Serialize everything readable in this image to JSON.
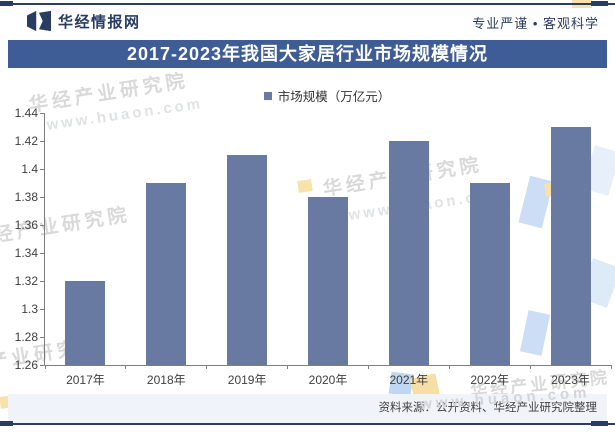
{
  "header": {
    "brand": "华经情报网",
    "slogan": "专业严谨 • 客观科学",
    "logo_icon": "huajing-butterfly-logo"
  },
  "chart_data": {
    "type": "bar",
    "title": "2017-2023年我国大家居行业市场规模情况",
    "series_name": "市场规模（万亿元）",
    "categories": [
      "2017年",
      "2018年",
      "2019年",
      "2020年",
      "2021年",
      "2022年",
      "2023年"
    ],
    "values": [
      1.32,
      1.39,
      1.41,
      1.38,
      1.42,
      1.39,
      1.43
    ],
    "xlabel": "",
    "ylabel": "",
    "ylim": [
      1.26,
      1.44
    ],
    "y_tick_labels": [
      "1.26",
      "1.28",
      "1.3",
      "1.32",
      "1.34",
      "1.36",
      "1.38",
      "1.4",
      "1.42",
      "1.44"
    ],
    "grid": false,
    "legend_position": "top-center",
    "bar_color": "#687AA2"
  },
  "watermarks": {
    "brand": "华经产业研究院",
    "url": "www.huaon.com"
  },
  "footer": {
    "source": "资料来源：公开资料、华经产业研究院整理"
  },
  "colors": {
    "navy": "#2B3C63",
    "banner_bg": "#3E5C96",
    "bar": "#687AA2",
    "axis": "#7F7F7F",
    "text": "#404040",
    "footer_band": "#F0F3F8",
    "watermark": "#D9D9D9",
    "wm_blue": "#CBDEF5",
    "wm_yellow": "#F7E2AB"
  }
}
